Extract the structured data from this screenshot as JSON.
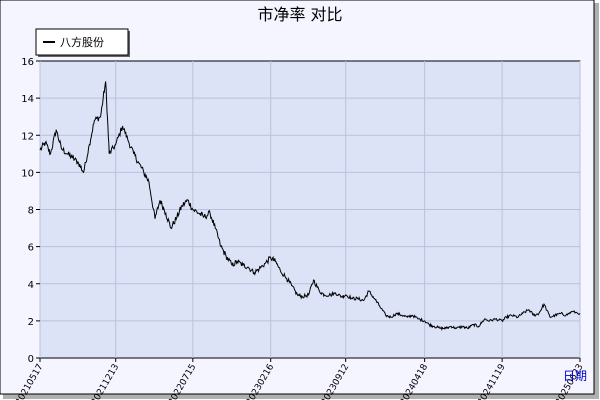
{
  "chart_data": {
    "type": "line",
    "title": "市净率  对比",
    "xlabel": "日期",
    "ylabel": "",
    "ylim": [
      0,
      16
    ],
    "yticks": [
      0,
      2,
      4,
      6,
      8,
      10,
      12,
      14,
      16
    ],
    "xticks": [
      "20210517",
      "20211213",
      "20220715",
      "20230216",
      "20230912",
      "20240418",
      "20241119",
      "20250623"
    ],
    "grid": true,
    "legend_position": "top-left",
    "colors": {
      "line": "#000000",
      "plot_bg": "#dde3f7",
      "grid": "#b8c2dc",
      "outer_bg": "#f5f5ff"
    },
    "series": [
      {
        "name": "八方股份",
        "points": [
          [
            "20210517",
            11.2
          ],
          [
            "20210601",
            11.6
          ],
          [
            "20210615",
            11.0
          ],
          [
            "20210701",
            12.3
          ],
          [
            "20210715",
            11.3
          ],
          [
            "20210801",
            11.0
          ],
          [
            "20210815",
            10.8
          ],
          [
            "20210901",
            10.5
          ],
          [
            "20210915",
            10.0
          ],
          [
            "20211001",
            11.5
          ],
          [
            "20211015",
            12.8
          ],
          [
            "20211101",
            13.0
          ],
          [
            "20211115",
            14.9
          ],
          [
            "20211125",
            11.0
          ],
          [
            "20211213",
            11.5
          ],
          [
            "20220101",
            12.5
          ],
          [
            "20220115",
            11.8
          ],
          [
            "20220201",
            11.0
          ],
          [
            "20220215",
            10.5
          ],
          [
            "20220301",
            10.0
          ],
          [
            "20220315",
            9.5
          ],
          [
            "20220401",
            7.5
          ],
          [
            "20220415",
            8.5
          ],
          [
            "20220501",
            7.8
          ],
          [
            "20220515",
            7.0
          ],
          [
            "20220601",
            7.6
          ],
          [
            "20220615",
            8.2
          ],
          [
            "20220701",
            8.5
          ],
          [
            "20220715",
            8.0
          ],
          [
            "20220801",
            7.8
          ],
          [
            "20220815",
            7.6
          ],
          [
            "20220901",
            7.8
          ],
          [
            "20220915",
            7.0
          ],
          [
            "20221001",
            6.0
          ],
          [
            "20221015",
            5.5
          ],
          [
            "20221101",
            5.0
          ],
          [
            "20221115",
            5.2
          ],
          [
            "20221201",
            5.0
          ],
          [
            "20221215",
            4.9
          ],
          [
            "20230101",
            4.6
          ],
          [
            "20230115",
            4.8
          ],
          [
            "20230201",
            5.1
          ],
          [
            "20230216",
            5.4
          ],
          [
            "20230301",
            5.2
          ],
          [
            "20230315",
            4.7
          ],
          [
            "20230401",
            4.3
          ],
          [
            "20230415",
            3.9
          ],
          [
            "20230501",
            3.4
          ],
          [
            "20230515",
            3.3
          ],
          [
            "20230601",
            3.4
          ],
          [
            "20230615",
            4.2
          ],
          [
            "20230701",
            3.6
          ],
          [
            "20230715",
            3.4
          ],
          [
            "20230801",
            3.4
          ],
          [
            "20230815",
            3.5
          ],
          [
            "20230901",
            3.3
          ],
          [
            "20230912",
            3.4
          ],
          [
            "20231001",
            3.2
          ],
          [
            "20231015",
            3.2
          ],
          [
            "20231101",
            3.1
          ],
          [
            "20231115",
            3.6
          ],
          [
            "20231201",
            3.2
          ],
          [
            "20231215",
            2.8
          ],
          [
            "20240101",
            2.3
          ],
          [
            "20240115",
            2.2
          ],
          [
            "20240201",
            2.4
          ],
          [
            "20240215",
            2.3
          ],
          [
            "20240301",
            2.2
          ],
          [
            "20240315",
            2.3
          ],
          [
            "20240401",
            2.1
          ],
          [
            "20240418",
            2.0
          ],
          [
            "20240501",
            1.8
          ],
          [
            "20240515",
            1.7
          ],
          [
            "20240601",
            1.6
          ],
          [
            "20240615",
            1.6
          ],
          [
            "20240701",
            1.7
          ],
          [
            "20240715",
            1.6
          ],
          [
            "20240801",
            1.7
          ],
          [
            "20240815",
            1.6
          ],
          [
            "20240901",
            1.8
          ],
          [
            "20240915",
            1.7
          ],
          [
            "20241001",
            2.1
          ],
          [
            "20241015",
            2.0
          ],
          [
            "20241101",
            2.1
          ],
          [
            "20241119",
            2.0
          ],
          [
            "20241201",
            2.2
          ],
          [
            "20241215",
            2.3
          ],
          [
            "20250101",
            2.2
          ],
          [
            "20250115",
            2.4
          ],
          [
            "20250201",
            2.6
          ],
          [
            "20250215",
            2.3
          ],
          [
            "20250301",
            2.4
          ],
          [
            "20250315",
            2.9
          ],
          [
            "20250401",
            2.2
          ],
          [
            "20250415",
            2.3
          ],
          [
            "20250501",
            2.4
          ],
          [
            "20250515",
            2.3
          ],
          [
            "20250601",
            2.5
          ],
          [
            "20250623",
            2.4
          ]
        ]
      }
    ]
  }
}
